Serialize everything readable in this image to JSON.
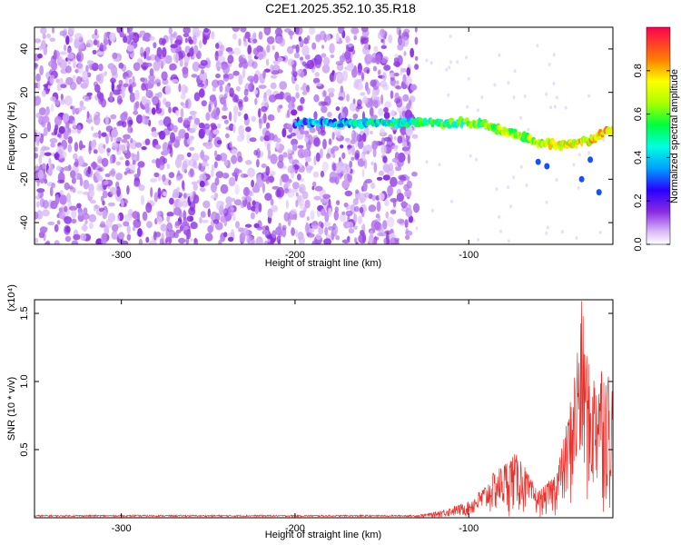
{
  "title": "C2E1.2025.352.10.35.R18",
  "chart_data": [
    {
      "type": "heatmap",
      "xlabel": "Height of straight line (km)",
      "ylabel": "Frequency (Hz)",
      "xlim": [
        -350,
        -17
      ],
      "ylim": [
        -50,
        50
      ],
      "xticks": [
        -300,
        -200,
        -100
      ],
      "yticks": [
        -40,
        -20,
        0,
        20,
        40
      ],
      "colorbar": {
        "label": "Normalized spectral amplitude",
        "range": [
          0,
          1
        ],
        "ticks": [
          "0.0",
          "0.2",
          "0.4",
          "0.6",
          "0.8"
        ]
      },
      "ridge": {
        "x": [
          -200,
          -180,
          -160,
          -140,
          -120,
          -100,
          -90,
          -80,
          -70,
          -60,
          -50,
          -40,
          -30,
          -20
        ],
        "y": [
          6,
          6,
          6,
          6,
          6,
          6,
          5,
          2,
          0,
          -3,
          -4,
          -4,
          -2,
          2
        ]
      }
    },
    {
      "type": "line",
      "xlabel": "Height of straight line (km)",
      "ylabel": "SNR (10 * v/v)",
      "y_scale_label": "(x10⁴)",
      "xlim": [
        -350,
        -17
      ],
      "ylim": [
        0,
        1.6
      ],
      "xticks": [
        -300,
        -200,
        -100
      ],
      "yticks": [
        "0.5",
        "1.0",
        "1.5"
      ],
      "color": "#e8302a",
      "envelope": {
        "x": [
          -350,
          -130,
          -120,
          -110,
          -100,
          -90,
          -85,
          -80,
          -75,
          -70,
          -65,
          -60,
          -55,
          -50,
          -45,
          -40,
          -35,
          -33,
          -30,
          -25,
          -20,
          -17
        ],
        "y": [
          0.02,
          0.02,
          0.04,
          0.08,
          0.12,
          0.25,
          0.35,
          0.4,
          0.48,
          0.45,
          0.3,
          0.2,
          0.25,
          0.35,
          0.6,
          1.0,
          1.6,
          1.4,
          1.0,
          1.2,
          1.1,
          1.0
        ]
      }
    }
  ]
}
